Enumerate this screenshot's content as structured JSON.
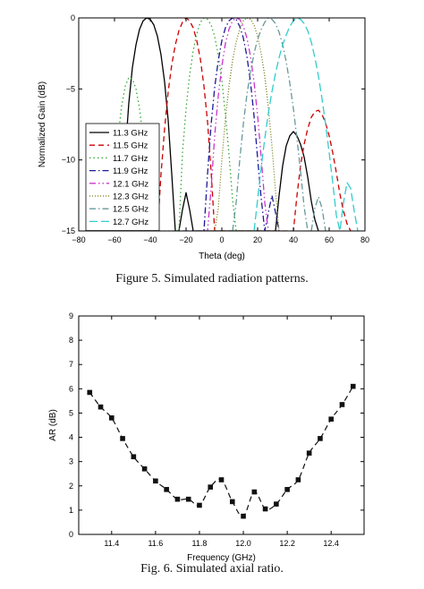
{
  "figure5": {
    "caption": "Figure 5. Simulated radiation patterns.",
    "chart_data": {
      "type": "line",
      "title": "",
      "xlabel": "Theta (deg)",
      "ylabel": "Normalized Gain (dB)",
      "xlim": [
        -80,
        80
      ],
      "ylim": [
        -15,
        0
      ],
      "xticks": [
        -80,
        -60,
        -40,
        -20,
        0,
        20,
        40,
        60,
        80
      ],
      "yticks": [
        -15,
        -10,
        -5,
        0
      ],
      "grid": false,
      "legend_position": "bottom-left",
      "series": [
        {
          "name": "11.3 GHz",
          "color": "#000000",
          "dash": "solid",
          "x": [
            -56,
            -54,
            -52,
            -50,
            -48,
            -46,
            -44,
            -42,
            -40,
            -38,
            -36,
            -34,
            -32,
            -30,
            -28,
            -26,
            -24,
            -22,
            -20,
            -18,
            -16,
            -14,
            -12,
            30,
            32,
            34,
            36,
            38,
            40,
            42,
            44,
            46,
            48,
            50,
            52,
            54
          ],
          "y": [
            -15,
            -9.5,
            -6.0,
            -3.5,
            -1.9,
            -0.8,
            -0.2,
            0,
            -0.1,
            -0.5,
            -1.3,
            -2.6,
            -4.5,
            -7.2,
            -11.0,
            -15,
            -15,
            -13.5,
            -12.3,
            -13.5,
            -15,
            -15,
            -15,
            -15,
            -12.5,
            -10.4,
            -9.0,
            -8.3,
            -8.0,
            -8.3,
            -8.9,
            -9.8,
            -11.2,
            -12.9,
            -14.2,
            -15
          ]
        },
        {
          "name": "11.5 GHz",
          "color": "#cc0000",
          "dash": "dashed",
          "x": [
            -36,
            -34,
            -32,
            -30,
            -28,
            -26,
            -24,
            -22,
            -20,
            -18,
            -16,
            -14,
            -12,
            -10,
            -8,
            -6,
            -4,
            -2,
            0,
            2,
            4,
            40,
            42,
            44,
            46,
            48,
            50,
            52,
            54,
            56,
            58,
            60,
            62,
            64,
            66,
            68,
            70,
            72
          ],
          "y": [
            -15,
            -11.0,
            -7.8,
            -5.2,
            -3.3,
            -1.9,
            -0.9,
            -0.3,
            0,
            -0.2,
            -0.7,
            -1.6,
            -2.9,
            -4.8,
            -7.3,
            -10.8,
            -15,
            -15,
            -15,
            -15,
            -15,
            -15,
            -12.5,
            -10.4,
            -8.9,
            -7.8,
            -7.0,
            -6.6,
            -6.5,
            -6.8,
            -7.4,
            -8.3,
            -9.5,
            -10.9,
            -12.4,
            -13.6,
            -14.5,
            -15
          ]
        },
        {
          "name": "11.7 GHz",
          "color": "#33aa33",
          "dash": "dotted",
          "x": [
            -62,
            -60,
            -58,
            -56,
            -54,
            -52,
            -50,
            -48,
            -46,
            -44,
            -42,
            -40,
            -38,
            -36,
            -34,
            -32,
            -30,
            -28,
            -26,
            -24,
            -22,
            -20,
            -18,
            -16,
            -14,
            -12,
            -10,
            -8,
            -6,
            -4,
            -2,
            0,
            2,
            4,
            6,
            8,
            10,
            12,
            14
          ],
          "y": [
            -15,
            -11.5,
            -8.4,
            -6.2,
            -4.8,
            -4.2,
            -4.3,
            -5.0,
            -6.4,
            -8.5,
            -11.5,
            -15,
            -15,
            -15,
            -15,
            -15,
            -15,
            -15,
            -15,
            -15,
            -9.5,
            -6.4,
            -4.0,
            -2.3,
            -1.1,
            -0.3,
            0,
            -0.1,
            -0.5,
            -1.3,
            -2.6,
            -4.4,
            -6.8,
            -9.6,
            -12.8,
            -15,
            -15,
            -15,
            -15
          ]
        },
        {
          "name": "11.9 GHz",
          "color": "#1a1a99",
          "dash": "dashdot",
          "x": [
            -22,
            -20,
            -18,
            -16,
            -14,
            -12,
            -10,
            -8,
            -6,
            -4,
            -2,
            0,
            2,
            4,
            6,
            8,
            10,
            12,
            14,
            16,
            18,
            20,
            22,
            24,
            26,
            28,
            30,
            32
          ],
          "y": [
            -15,
            -15,
            -15,
            -15,
            -15,
            -15,
            -15,
            -11.0,
            -7.5,
            -4.9,
            -3.0,
            -1.6,
            -0.7,
            -0.2,
            0,
            -0.1,
            -0.6,
            -1.4,
            -2.7,
            -4.5,
            -6.9,
            -9.9,
            -12.7,
            -15,
            -13.7,
            -12.5,
            -13.7,
            -15
          ]
        },
        {
          "name": "12.1 GHz",
          "color": "#cc33cc",
          "dash": "dashdotdot",
          "x": [
            -10,
            -8,
            -6,
            -4,
            -2,
            0,
            2,
            4,
            6,
            8,
            10,
            12,
            14,
            16,
            18,
            20,
            22,
            24,
            26,
            28
          ],
          "y": [
            -15,
            -15,
            -12.0,
            -8.3,
            -5.5,
            -3.4,
            -1.8,
            -0.8,
            -0.2,
            0,
            -0.1,
            -0.6,
            -1.4,
            -2.7,
            -4.5,
            -6.9,
            -9.8,
            -13.0,
            -15,
            -15
          ]
        },
        {
          "name": "12.3 GHz",
          "color": "#777711",
          "dash": "shortdot",
          "x": [
            -4,
            -2,
            0,
            2,
            4,
            6,
            8,
            10,
            12,
            14,
            16,
            18,
            20,
            22,
            24,
            26,
            28,
            30,
            32,
            34
          ],
          "y": [
            -15,
            -13.4,
            -10.0,
            -7.1,
            -4.8,
            -3.0,
            -1.7,
            -0.8,
            -0.2,
            0,
            -0.1,
            -0.5,
            -1.3,
            -2.5,
            -4.1,
            -6.3,
            -9.0,
            -12.2,
            -15,
            -15
          ]
        },
        {
          "name": "12.5 GHz",
          "color": "#669999",
          "dash": "dashdot",
          "x": [
            6,
            8,
            10,
            12,
            14,
            16,
            18,
            20,
            22,
            24,
            26,
            28,
            30,
            32,
            34,
            36,
            38,
            40,
            42,
            44,
            46,
            48,
            50,
            52,
            54,
            56,
            58
          ],
          "y": [
            -15,
            -13.0,
            -10.0,
            -7.5,
            -5.4,
            -3.8,
            -2.5,
            -1.5,
            -0.8,
            -0.3,
            0,
            -0.1,
            -0.4,
            -1.0,
            -1.9,
            -3.1,
            -4.6,
            -6.4,
            -8.5,
            -10.8,
            -13.3,
            -15,
            -15,
            -13.4,
            -12.6,
            -13.4,
            -15
          ]
        },
        {
          "name": "12.7 GHz",
          "color": "#33cccc",
          "dash": "longdash",
          "x": [
            18,
            20,
            22,
            24,
            26,
            28,
            30,
            32,
            34,
            36,
            38,
            40,
            42,
            44,
            46,
            48,
            50,
            52,
            54,
            56,
            58,
            60,
            62,
            64,
            66,
            68,
            70,
            72,
            74,
            76
          ],
          "y": [
            -15,
            -12.8,
            -10.5,
            -8.5,
            -6.7,
            -5.2,
            -3.9,
            -2.8,
            -1.9,
            -1.2,
            -0.6,
            -0.2,
            0,
            -0.1,
            -0.4,
            -0.9,
            -1.7,
            -2.8,
            -4.1,
            -5.7,
            -7.5,
            -9.5,
            -11.6,
            -13.9,
            -15,
            -13.0,
            -11.6,
            -12.0,
            -13.6,
            -15
          ]
        }
      ]
    }
  },
  "figure6": {
    "caption": "Fig. 6. Simulated axial ratio.",
    "chart_data": {
      "type": "line",
      "title": "",
      "xlabel": "Frequency (GHz)",
      "ylabel": "AR (dB)",
      "xlim": [
        11.25,
        12.55
      ],
      "ylim": [
        0,
        9
      ],
      "xticks": [
        11.4,
        11.6,
        11.8,
        12.0,
        12.2,
        12.4
      ],
      "xtick_labels": [
        "11.4",
        "11.6",
        "11.8",
        "12.0",
        "12.2",
        "12.4"
      ],
      "yticks": [
        0,
        1,
        2,
        3,
        4,
        5,
        6,
        7,
        8,
        9
      ],
      "grid": false,
      "series": [
        {
          "color": "#111111",
          "dash": "dashed",
          "marker": "square",
          "x": [
            11.3,
            11.35,
            11.4,
            11.45,
            11.5,
            11.55,
            11.6,
            11.65,
            11.7,
            11.75,
            11.8,
            11.85,
            11.9,
            11.95,
            12.0,
            12.05,
            12.1,
            12.15,
            12.2,
            12.25,
            12.3,
            12.35,
            12.4,
            12.45,
            12.5
          ],
          "y": [
            5.85,
            5.25,
            4.8,
            3.95,
            3.2,
            2.7,
            2.2,
            1.85,
            1.45,
            1.45,
            1.2,
            1.95,
            2.25,
            1.35,
            0.75,
            1.75,
            1.05,
            1.25,
            1.85,
            2.25,
            3.35,
            3.95,
            4.75,
            5.35,
            6.1
          ]
        }
      ]
    }
  }
}
